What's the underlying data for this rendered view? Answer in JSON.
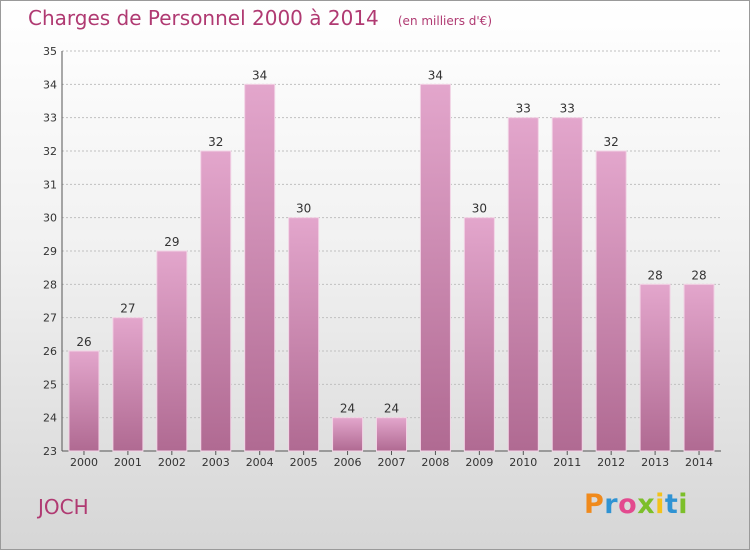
{
  "header": {
    "title": "Charges de Personnel 2000 à 2014",
    "unit_note": "(en milliers d'€)"
  },
  "footer": {
    "commune": "JOCH",
    "brand": "Proxiti",
    "brand_letters": [
      {
        "ch": "P",
        "color": "#f08a1c"
      },
      {
        "ch": "r",
        "color": "#2f93d3"
      },
      {
        "ch": "o",
        "color": "#e34a8f"
      },
      {
        "ch": "x",
        "color": "#7cbf2a"
      },
      {
        "ch": "i",
        "color": "#f3c21a"
      },
      {
        "ch": "t",
        "color": "#2f93d3"
      },
      {
        "ch": "i",
        "color": "#7cbf2a"
      }
    ]
  },
  "colors": {
    "bar_top": "#e3a6cc",
    "bar_bottom": "#b06a92",
    "grid": "#c0c0c0",
    "text_accent": "#b03a72"
  },
  "chart_data": {
    "type": "bar",
    "title": "Charges de Personnel 2000 à 2014",
    "subtitle": "(en milliers d'€)",
    "categories": [
      "2000",
      "2001",
      "2002",
      "2003",
      "2004",
      "2005",
      "2006",
      "2007",
      "2008",
      "2009",
      "2010",
      "2011",
      "2012",
      "2013",
      "2014"
    ],
    "values": [
      26,
      27,
      29,
      32,
      34,
      30,
      24,
      24,
      34,
      30,
      33,
      33,
      32,
      28,
      28
    ],
    "ylim": [
      23,
      35
    ],
    "yticks": [
      23,
      24,
      25,
      26,
      27,
      28,
      29,
      30,
      31,
      32,
      33,
      34,
      35
    ],
    "grid": true,
    "data_labels": true,
    "legend": "none"
  }
}
